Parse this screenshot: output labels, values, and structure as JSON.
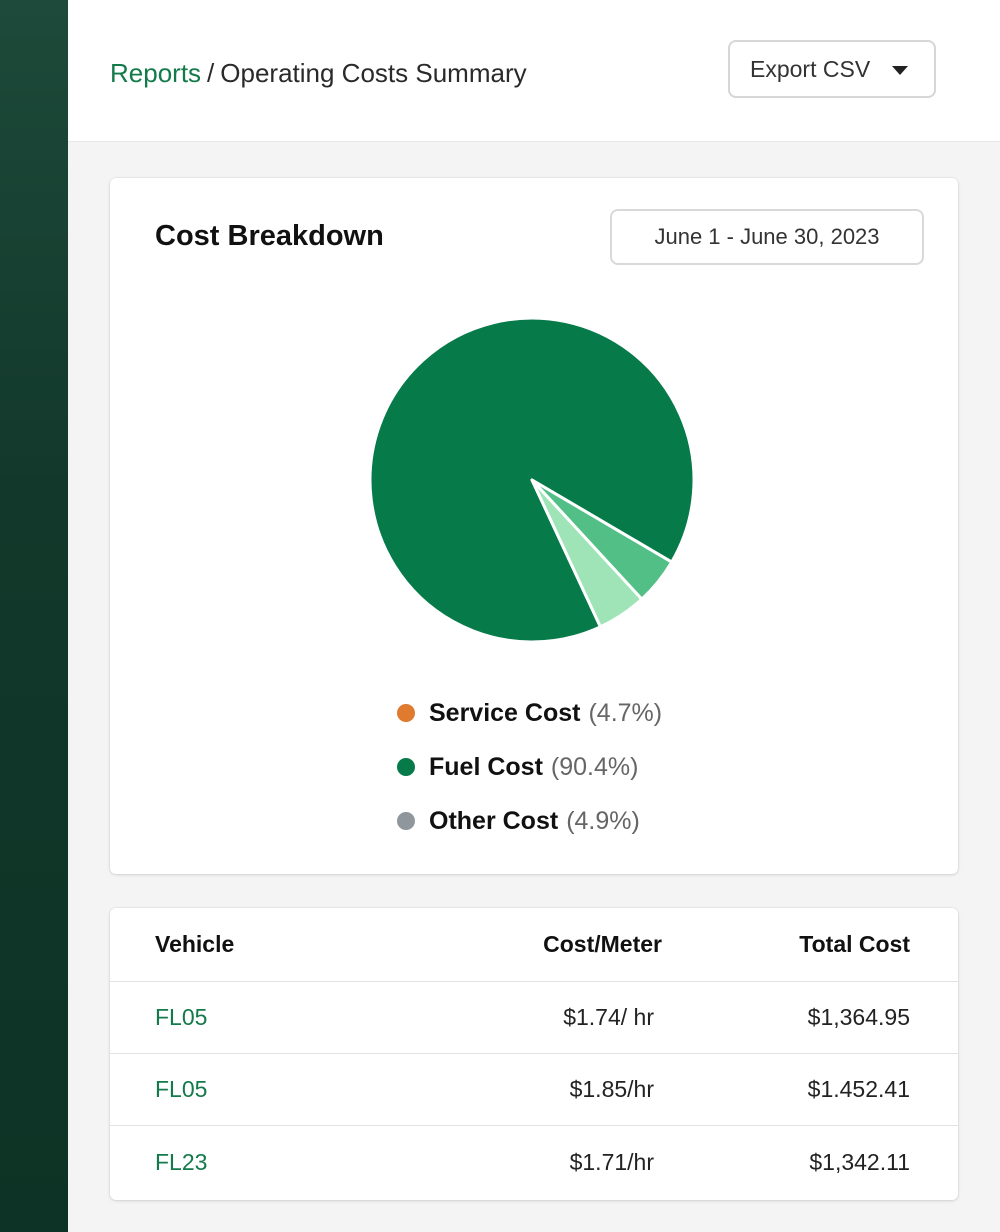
{
  "breadcrumb": {
    "parent": "Reports",
    "separator": "/",
    "current": "Operating Costs Summary"
  },
  "toolbar": {
    "export_label": "Export CSV"
  },
  "cost_card": {
    "title": "Cost Breakdown",
    "date_range": "June 1 - June 30, 2023"
  },
  "chart_data": {
    "type": "pie",
    "slices": [
      {
        "label": "Service Cost",
        "percent_text": "(4.7%)",
        "value": 4.7,
        "color": "#e07a2e",
        "pie_color": "#52bf86"
      },
      {
        "label": "Fuel Cost",
        "percent_text": "(90.4%)",
        "value": 90.4,
        "color": "#077a4a",
        "pie_color": "#077a4a"
      },
      {
        "label": "Other Cost",
        "percent_text": "(4.9%)",
        "value": 4.9,
        "color": "#8f969c",
        "pie_color": "#9ee4b6"
      }
    ]
  },
  "table": {
    "headers": {
      "vehicle": "Vehicle",
      "cost_meter": "Cost/Meter",
      "total_cost": "Total Cost"
    },
    "rows": [
      {
        "vehicle": "FL05",
        "cost_meter": "$1.74/ hr",
        "total_cost": "$1,364.95"
      },
      {
        "vehicle": "FL05",
        "cost_meter": "$1.85/hr",
        "total_cost": "$1.452.41"
      },
      {
        "vehicle": "FL23",
        "cost_meter": "$1.71/hr",
        "total_cost": "$1,342.11"
      }
    ]
  },
  "colors": {
    "accent": "#137a4a",
    "sidebar": "#123a2c"
  }
}
